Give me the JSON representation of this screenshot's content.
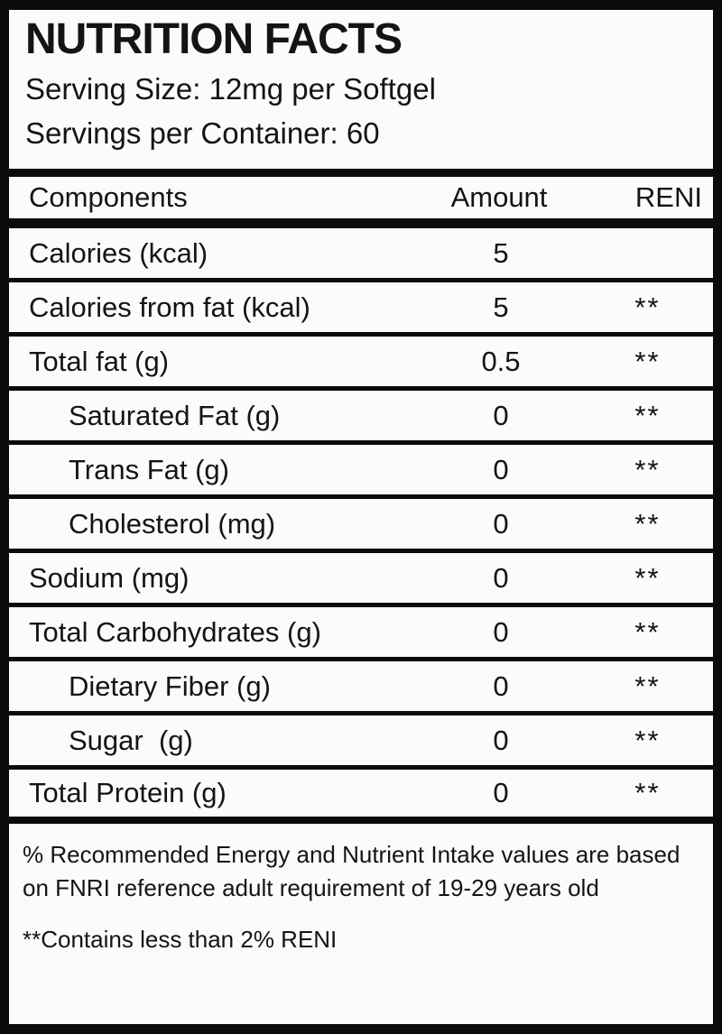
{
  "colors": {
    "background": "#0b0b0b",
    "label_background": "#fbfbf9",
    "text": "#141414"
  },
  "header": {
    "title": "NUTRITION FACTS",
    "serving_size_line": "Serving Size: 12mg per Softgel",
    "servings_per_container_line": "Servings per Container: 60"
  },
  "table": {
    "columns": [
      "Components",
      "Amount",
      "RENI"
    ],
    "rows": [
      {
        "component": "Calories (kcal)",
        "amount": "5",
        "reni": "",
        "indent": false
      },
      {
        "component": "Calories from fat (kcal)",
        "amount": "5",
        "reni": "**",
        "indent": false
      },
      {
        "component": "Total fat (g)",
        "amount": "0.5",
        "reni": "**",
        "indent": false
      },
      {
        "component": "Saturated Fat (g)",
        "amount": "0",
        "reni": "**",
        "indent": true
      },
      {
        "component": "Trans Fat (g)",
        "amount": "0",
        "reni": "**",
        "indent": true
      },
      {
        "component": "Cholesterol (mg)",
        "amount": "0",
        "reni": "**",
        "indent": true
      },
      {
        "component": "Sodium (mg)",
        "amount": "0",
        "reni": "**",
        "indent": false
      },
      {
        "component": "Total Carbohydrates (g)",
        "amount": "0",
        "reni": "**",
        "indent": false
      },
      {
        "component": "Dietary Fiber (g)",
        "amount": "0",
        "reni": "**",
        "indent": true
      },
      {
        "component": "Sugar  (g)",
        "amount": "0",
        "reni": "**",
        "indent": true
      },
      {
        "component": "Total Protein (g)",
        "amount": "0",
        "reni": "**",
        "indent": false
      }
    ]
  },
  "footnotes": {
    "reni_note": "% Recommended Energy and Nutrient Intake values are based on FNRI reference adult requirement of 19-29 years old",
    "reni_note_lines": [
      "% Recommended Energy and Nutrient Intake values are based",
      "on FNRI reference adult requirement of 19-29 years old"
    ],
    "contains_note": "**Contains less than 2% RENI"
  }
}
